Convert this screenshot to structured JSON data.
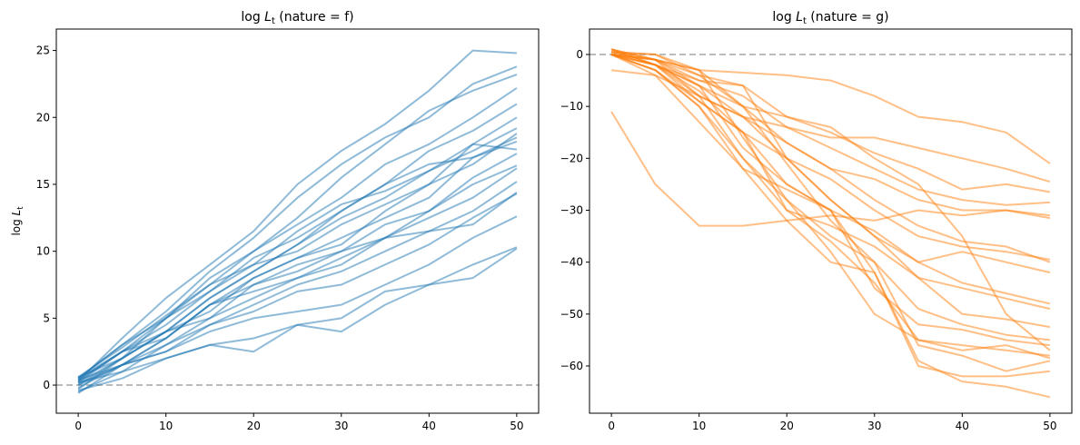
{
  "chart_data": [
    {
      "type": "line",
      "title": {
        "prefix": "log ",
        "var": "L",
        "sub": "t",
        "suffix": " (nature = f)"
      },
      "ylabel": {
        "prefix": "log ",
        "var": "L",
        "sub": "t"
      },
      "xlabel": "",
      "xlim": [
        -2.5,
        52.5
      ],
      "ylim": [
        -2.1,
        26.6
      ],
      "xticks": [
        0,
        10,
        20,
        30,
        40,
        50
      ],
      "yticks": [
        0,
        5,
        10,
        15,
        20,
        25
      ],
      "reference_line": {
        "y": 0,
        "style": "dashed",
        "color": "#bbbbbb"
      },
      "color": "#1f77b4",
      "alpha": 0.5,
      "grid": false,
      "x": [
        0,
        5,
        10,
        15,
        20,
        25,
        30,
        35,
        40,
        45,
        50
      ],
      "series": [
        {
          "values": [
            0.3,
            3.5,
            6.5,
            9,
            11.5,
            15,
            17.5,
            19.5,
            22,
            25,
            24.8
          ]
        },
        {
          "values": [
            0.5,
            3,
            5.5,
            8.5,
            11,
            14,
            16.5,
            18.5,
            20,
            22.5,
            23.8
          ]
        },
        {
          "values": [
            0.2,
            2.5,
            5,
            8,
            10,
            12.5,
            15.5,
            18,
            20.5,
            22,
            23.2
          ]
        },
        {
          "values": [
            0.6,
            2.8,
            5.2,
            7.5,
            10,
            12,
            14,
            16.5,
            18,
            20,
            22.2
          ]
        },
        {
          "values": [
            0,
            2,
            5,
            7,
            9.5,
            11,
            13,
            15,
            17.5,
            19,
            21
          ]
        },
        {
          "values": [
            0.4,
            2.5,
            4.5,
            7,
            9,
            11.5,
            13.5,
            14.5,
            16,
            18,
            20
          ]
        },
        {
          "values": [
            -0.3,
            2,
            4,
            6.5,
            8.5,
            10.5,
            12.5,
            14,
            16,
            17.5,
            19.2
          ]
        },
        {
          "values": [
            0.5,
            3,
            5,
            7.5,
            9,
            10,
            12,
            13.5,
            15,
            16.5,
            18.8
          ]
        },
        {
          "values": [
            0.1,
            1.5,
            3.5,
            6,
            8,
            9.5,
            11,
            12.5,
            14,
            17,
            18.5
          ]
        },
        {
          "values": [
            0.2,
            2,
            4,
            5.5,
            8,
            9.5,
            10.5,
            13,
            15,
            18,
            17.6
          ]
        },
        {
          "values": [
            -0.5,
            1,
            3,
            5,
            7.5,
            9,
            10,
            12,
            13,
            15.5,
            17.3
          ]
        },
        {
          "values": [
            0.3,
            2.5,
            3.5,
            6,
            7.5,
            8.5,
            10,
            11,
            13,
            15,
            16.4
          ]
        },
        {
          "values": [
            0.6,
            2,
            4,
            5,
            6.5,
            8,
            9.5,
            11,
            12.5,
            14,
            16.2
          ]
        },
        {
          "values": [
            -0.2,
            1.5,
            3,
            4.5,
            6,
            7.5,
            8.5,
            10,
            11.5,
            13,
            15.2
          ]
        },
        {
          "values": [
            0.4,
            1.5,
            3.5,
            6,
            7,
            8,
            9,
            11,
            11.5,
            12,
            14.4
          ]
        },
        {
          "values": [
            0,
            1.5,
            2.5,
            4.5,
            5.5,
            7,
            7.5,
            9,
            10.5,
            12.5,
            14.3
          ]
        },
        {
          "values": [
            -0.6,
            1.5,
            2.5,
            4,
            5,
            5.5,
            6,
            7.5,
            9,
            11,
            12.6
          ]
        },
        {
          "values": [
            0.2,
            1,
            2,
            3,
            3.5,
            4.5,
            5,
            7,
            7.5,
            9,
            10.3
          ]
        },
        {
          "values": [
            -0.4,
            0.5,
            2,
            3,
            2.5,
            4.5,
            4,
            6,
            7.5,
            8,
            10.2
          ]
        },
        {
          "values": [
            0.5,
            2.5,
            4,
            6.5,
            8.5,
            10.5,
            13,
            15,
            16.5,
            17,
            18.2
          ]
        }
      ]
    },
    {
      "type": "line",
      "title": {
        "prefix": "log ",
        "var": "L",
        "sub": "t",
        "suffix": " (nature = g)"
      },
      "xlabel": "",
      "xlim": [
        -2.5,
        52.5
      ],
      "ylim": [
        -69.1,
        4.9
      ],
      "xticks": [
        0,
        10,
        20,
        30,
        40,
        50
      ],
      "yticks": [
        0,
        -10,
        -20,
        -30,
        -40,
        -50,
        -60
      ],
      "reference_line": {
        "y": 0,
        "style": "dashed",
        "color": "#bbbbbb"
      },
      "color": "#ff7f0e",
      "alpha": 0.5,
      "grid": false,
      "x": [
        0,
        5,
        10,
        15,
        20,
        25,
        30,
        35,
        40,
        45,
        50
      ],
      "series": [
        {
          "values": [
            0,
            -1,
            -3,
            -3.5,
            -4,
            -5,
            -8,
            -12,
            -13,
            -15,
            -21
          ]
        },
        {
          "values": [
            -3,
            -4,
            -8,
            -12,
            -14,
            -16,
            -16,
            -18,
            -20,
            -22,
            -24.5
          ]
        },
        {
          "values": [
            0.5,
            0,
            -4,
            -6,
            -12,
            -15,
            -19,
            -22,
            -26,
            -25,
            -26.5
          ]
        },
        {
          "values": [
            0,
            -2,
            -5,
            -8,
            -14,
            -18,
            -22,
            -26,
            -28,
            -29,
            -28.5
          ]
        },
        {
          "values": [
            0.5,
            0,
            -3,
            -10,
            -17,
            -22,
            -24,
            -28,
            -30,
            -30,
            -31
          ]
        },
        {
          "values": [
            -11,
            -25,
            -33,
            -33,
            -32,
            -31,
            -32,
            -30,
            -31,
            -30,
            -31.5
          ]
        },
        {
          "values": [
            0,
            -1,
            -5,
            -6,
            -20,
            -24,
            -30,
            -35,
            -37,
            -38,
            -39.5
          ]
        },
        {
          "values": [
            1,
            -2,
            -8,
            -12,
            -17,
            -22,
            -28,
            -33,
            -36,
            -37,
            -40
          ]
        },
        {
          "values": [
            0,
            -3,
            -9,
            -15,
            -20,
            -28,
            -35,
            -40,
            -38,
            -40,
            -42
          ]
        },
        {
          "values": [
            0,
            -2,
            -6,
            -18,
            -25,
            -30,
            -34,
            -40,
            -44,
            -46,
            -48
          ]
        },
        {
          "values": [
            1,
            -1,
            -6,
            -12,
            -20,
            -28,
            -35,
            -43,
            -45,
            -47,
            -49
          ]
        },
        {
          "values": [
            0,
            -3,
            -10,
            -20,
            -30,
            -33,
            -37,
            -43,
            -50,
            -51,
            -52.5
          ]
        },
        {
          "values": [
            0.5,
            -1,
            -3,
            -16,
            -28,
            -35,
            -40,
            -49,
            -52,
            -54,
            -55
          ]
        },
        {
          "values": [
            0,
            -4,
            -13,
            -22,
            -26,
            -30,
            -45,
            -52,
            -53,
            -55,
            -56
          ]
        },
        {
          "values": [
            1,
            -2,
            -9,
            -15,
            -30,
            -36,
            -44,
            -55,
            -56,
            -57,
            -58
          ]
        },
        {
          "values": [
            0,
            -1,
            -4,
            -10,
            -21,
            -32,
            -40,
            -56,
            -58,
            -61,
            -59
          ]
        },
        {
          "values": [
            0.5,
            -2,
            -7,
            -15,
            -25,
            -30,
            -42,
            -60,
            -62,
            -62,
            -61
          ]
        },
        {
          "values": [
            0,
            -3,
            -10,
            -22,
            -32,
            -40,
            -42,
            -59,
            -63,
            -64,
            -66
          ]
        },
        {
          "values": [
            1,
            -1,
            -8,
            -20,
            -28,
            -38,
            -50,
            -55,
            -57,
            -56,
            -58.5
          ]
        },
        {
          "values": [
            0,
            -2,
            -6,
            -10,
            -12,
            -14,
            -20,
            -25,
            -35,
            -50,
            -57
          ]
        }
      ]
    }
  ]
}
